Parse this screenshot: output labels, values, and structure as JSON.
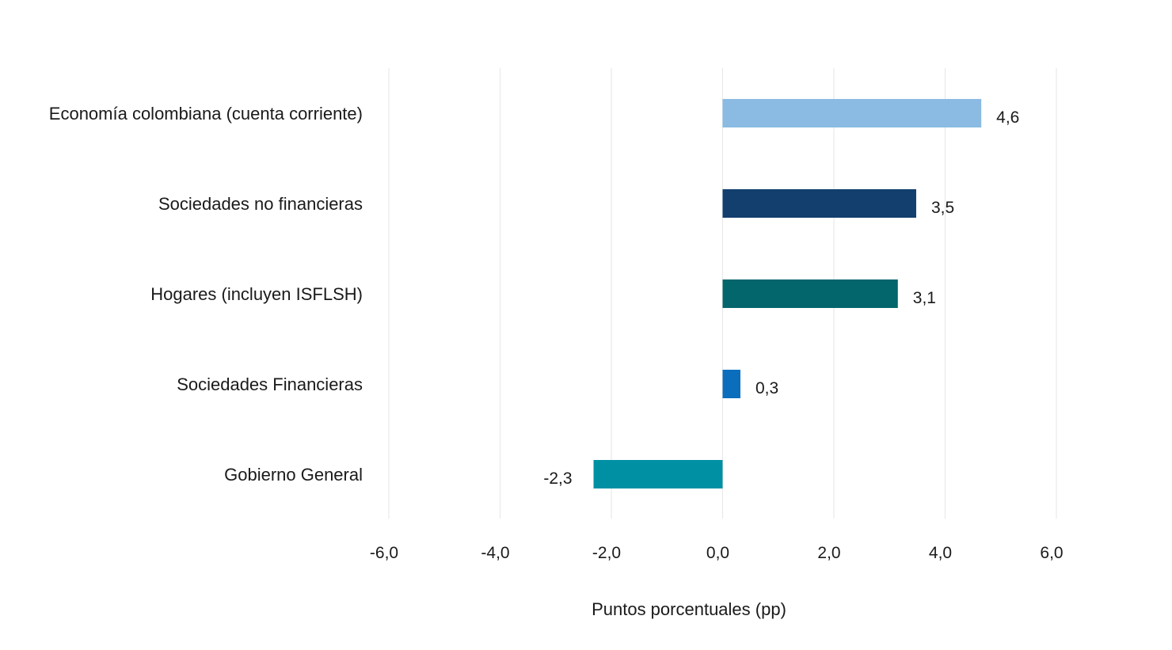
{
  "chart_data": {
    "type": "bar",
    "orientation": "horizontal",
    "title": "",
    "xlabel": "Puntos porcentuales (pp)",
    "ylabel": "",
    "xlim": [
      -6,
      6
    ],
    "grid": true,
    "categories": [
      "Economía colombiana (cuenta corriente)",
      "Sociedades no financieras",
      "Hogares (incluyen ISFLSH)",
      "Sociedades Financieras",
      "Gobierno General"
    ],
    "values": [
      4.65,
      3.48,
      3.15,
      0.32,
      -2.32
    ],
    "value_labels": [
      "4,6",
      "3,5",
      "3,1",
      "0,3",
      "-2,3"
    ],
    "colors": [
      "#8bbbe2",
      "#123f6e",
      "#03666c",
      "#0a6ebd",
      "#0090a4"
    ],
    "ticks": [
      -6,
      -4,
      -2,
      0,
      2,
      4,
      6
    ],
    "tick_labels": [
      "-6,0",
      "-4,0",
      "-2,0",
      "0,0",
      "2,0",
      "4,0",
      "6,0"
    ]
  }
}
